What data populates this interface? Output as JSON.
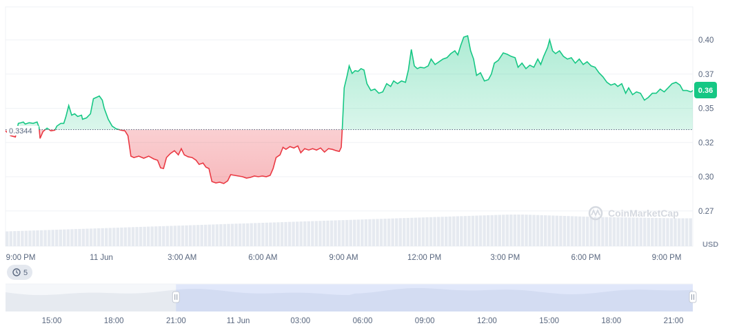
{
  "chart_data": {
    "type": "area",
    "currency": "USD",
    "reference_price": 0.3344,
    "reference_label": "0.3344",
    "current_price_label": "0.36",
    "ylim": [
      0.26,
      0.42
    ],
    "y_ticks": [
      {
        "value": 0.4,
        "label": "0.40"
      },
      {
        "value": 0.375,
        "label": "0.37"
      },
      {
        "value": 0.35,
        "label": "0.35"
      },
      {
        "value": 0.325,
        "label": "0.32"
      },
      {
        "value": 0.3,
        "label": "0.30"
      },
      {
        "value": 0.275,
        "label": "0.27"
      }
    ],
    "x_range_hours": [
      0,
      24.7
    ],
    "x_ticks": [
      {
        "hour": 0,
        "label": "9:00 PM"
      },
      {
        "hour": 3,
        "label": "11 Jun"
      },
      {
        "hour": 6,
        "label": "3:00 AM"
      },
      {
        "hour": 9,
        "label": "6:00 AM"
      },
      {
        "hour": 12,
        "label": "9:00 AM"
      },
      {
        "hour": 15,
        "label": "12:00 PM"
      },
      {
        "hour": 18,
        "label": "3:00 PM"
      },
      {
        "hour": 21,
        "label": "6:00 PM"
      },
      {
        "hour": 24,
        "label": "9:00 PM"
      }
    ],
    "price_series": [
      [
        0.0,
        0.3335
      ],
      [
        0.25,
        0.33
      ],
      [
        0.5,
        0.329
      ],
      [
        0.65,
        0.339
      ],
      [
        0.8,
        0.3395
      ],
      [
        0.9,
        0.34
      ],
      [
        1.0,
        0.3385
      ],
      [
        1.2,
        0.3395
      ],
      [
        1.4,
        0.339
      ],
      [
        1.6,
        0.34
      ],
      [
        1.7,
        0.336
      ],
      [
        1.75,
        0.328
      ],
      [
        1.9,
        0.333
      ],
      [
        2.1,
        0.3355
      ],
      [
        2.3,
        0.3335
      ],
      [
        2.5,
        0.334
      ],
      [
        2.6,
        0.337
      ],
      [
        2.8,
        0.339
      ],
      [
        2.95,
        0.339
      ],
      [
        3.05,
        0.3435
      ],
      [
        3.2,
        0.352
      ],
      [
        3.35,
        0.345
      ],
      [
        3.5,
        0.346
      ],
      [
        3.65,
        0.344
      ],
      [
        3.85,
        0.345
      ],
      [
        3.9,
        0.342
      ],
      [
        4.1,
        0.343
      ],
      [
        4.3,
        0.346
      ],
      [
        4.45,
        0.357
      ],
      [
        4.6,
        0.358
      ],
      [
        4.75,
        0.359
      ],
      [
        4.9,
        0.356
      ],
      [
        5.0,
        0.35
      ],
      [
        5.2,
        0.342
      ],
      [
        5.4,
        0.337
      ],
      [
        5.6,
        0.335
      ],
      [
        5.85,
        0.334
      ],
      [
        6.05,
        0.3335
      ],
      [
        6.2,
        0.33
      ],
      [
        6.35,
        0.315
      ],
      [
        6.5,
        0.314
      ],
      [
        6.75,
        0.315
      ],
      [
        7.0,
        0.3135
      ],
      [
        7.25,
        0.315
      ],
      [
        7.5,
        0.313
      ],
      [
        7.7,
        0.312
      ],
      [
        7.85,
        0.3065
      ],
      [
        8.0,
        0.306
      ],
      [
        8.15,
        0.314
      ],
      [
        8.35,
        0.317
      ],
      [
        8.55,
        0.319
      ],
      [
        8.75,
        0.316
      ],
      [
        8.9,
        0.3205
      ],
      [
        9.05,
        0.316
      ],
      [
        9.25,
        0.3145
      ],
      [
        9.45,
        0.314
      ],
      [
        9.65,
        0.312
      ],
      [
        9.8,
        0.309
      ],
      [
        10.0,
        0.31
      ],
      [
        10.15,
        0.307
      ],
      [
        10.3,
        0.306
      ],
      [
        10.45,
        0.2965
      ],
      [
        10.65,
        0.2955
      ],
      [
        10.85,
        0.296
      ],
      [
        11.05,
        0.295
      ],
      [
        11.25,
        0.297
      ],
      [
        11.4,
        0.3015
      ],
      [
        11.6,
        0.301
      ],
      [
        11.8,
        0.3005
      ],
      [
        12.0,
        0.3
      ],
      [
        12.2,
        0.299
      ],
      [
        12.4,
        0.2995
      ],
      [
        12.6,
        0.3005
      ],
      [
        12.8,
        0.3
      ],
      [
        13.0,
        0.3005
      ],
      [
        13.2,
        0.3
      ],
      [
        13.4,
        0.301
      ],
      [
        13.55,
        0.306
      ],
      [
        13.7,
        0.314
      ],
      [
        13.9,
        0.316
      ],
      [
        14.05,
        0.3215
      ],
      [
        14.2,
        0.32
      ],
      [
        14.4,
        0.322
      ],
      [
        14.6,
        0.321
      ],
      [
        14.8,
        0.3225
      ],
      [
        14.95,
        0.3175
      ],
      [
        15.15,
        0.3205
      ],
      [
        15.35,
        0.3195
      ],
      [
        15.55,
        0.3205
      ],
      [
        15.75,
        0.3195
      ],
      [
        15.95,
        0.321
      ],
      [
        16.15,
        0.318
      ],
      [
        16.35,
        0.3205
      ],
      [
        16.55,
        0.32
      ],
      [
        16.75,
        0.319
      ],
      [
        16.9,
        0.3185
      ],
      [
        17.0,
        0.3215
      ],
      [
        17.05,
        0.335
      ],
      [
        17.15,
        0.365
      ],
      [
        17.3,
        0.374
      ],
      [
        17.4,
        0.381
      ],
      [
        17.55,
        0.3755
      ],
      [
        17.7,
        0.3775
      ],
      [
        17.85,
        0.377
      ],
      [
        18.0,
        0.379
      ],
      [
        18.15,
        0.378
      ],
      [
        18.3,
        0.368
      ],
      [
        18.5,
        0.363
      ],
      [
        18.7,
        0.364
      ],
      [
        18.9,
        0.361
      ],
      [
        19.1,
        0.362
      ],
      [
        19.3,
        0.368
      ],
      [
        19.5,
        0.366
      ],
      [
        19.65,
        0.37
      ],
      [
        19.85,
        0.368
      ],
      [
        20.05,
        0.37
      ],
      [
        20.25,
        0.369
      ],
      [
        20.4,
        0.378
      ],
      [
        20.55,
        0.393
      ],
      [
        20.7,
        0.381
      ],
      [
        20.85,
        0.379
      ],
      [
        21.0,
        0.38
      ],
      [
        21.2,
        0.3795
      ],
      [
        21.4,
        0.381
      ],
      [
        21.55,
        0.386
      ],
      [
        21.75,
        0.382
      ],
      [
        21.95,
        0.384
      ],
      [
        22.15,
        0.386
      ],
      [
        22.35,
        0.387
      ],
      [
        22.55,
        0.39
      ],
      [
        22.75,
        0.392
      ],
      [
        22.9,
        0.389
      ],
      [
        23.05,
        0.396
      ],
      [
        23.2,
        0.402
      ],
      [
        23.4,
        0.403
      ],
      [
        23.55,
        0.392
      ],
      [
        23.7,
        0.386
      ],
      [
        23.85,
        0.374
      ],
      [
        24.05,
        0.376
      ],
      [
        24.25,
        0.37
      ],
      [
        24.45,
        0.371
      ],
      [
        24.6,
        0.375
      ],
      [
        24.75,
        0.383
      ],
      [
        24.95,
        0.385
      ],
      [
        25.2,
        0.3905
      ],
      [
        25.4,
        0.3895
      ],
      [
        25.6,
        0.388
      ],
      [
        25.8,
        0.387
      ],
      [
        25.95,
        0.38
      ],
      [
        26.15,
        0.383
      ],
      [
        26.35,
        0.379
      ],
      [
        26.55,
        0.3815
      ],
      [
        26.75,
        0.38
      ],
      [
        26.95,
        0.386
      ],
      [
        27.1,
        0.382
      ],
      [
        27.25,
        0.388
      ],
      [
        27.45,
        0.3945
      ],
      [
        27.55,
        0.4
      ],
      [
        27.7,
        0.392
      ],
      [
        27.85,
        0.39
      ],
      [
        28.05,
        0.392
      ],
      [
        28.25,
        0.388
      ],
      [
        28.45,
        0.386
      ],
      [
        28.65,
        0.387
      ],
      [
        28.85,
        0.383
      ],
      [
        29.05,
        0.386
      ],
      [
        29.25,
        0.382
      ],
      [
        29.45,
        0.384
      ],
      [
        29.65,
        0.381
      ],
      [
        29.85,
        0.38
      ],
      [
        30.05,
        0.376
      ],
      [
        30.25,
        0.373
      ],
      [
        30.45,
        0.369
      ],
      [
        30.65,
        0.367
      ],
      [
        30.85,
        0.368
      ],
      [
        31.0,
        0.366
      ],
      [
        31.2,
        0.368
      ],
      [
        31.4,
        0.361
      ],
      [
        31.55,
        0.365
      ],
      [
        31.75,
        0.36
      ],
      [
        31.95,
        0.362
      ],
      [
        32.15,
        0.361
      ],
      [
        32.35,
        0.356
      ],
      [
        32.55,
        0.358
      ],
      [
        32.75,
        0.361
      ],
      [
        32.95,
        0.361
      ],
      [
        33.15,
        0.364
      ],
      [
        33.35,
        0.362
      ],
      [
        33.55,
        0.365
      ],
      [
        33.75,
        0.368
      ],
      [
        33.95,
        0.369
      ],
      [
        34.15,
        0.367
      ],
      [
        34.3,
        0.363
      ],
      [
        34.5,
        0.363
      ],
      [
        34.7,
        0.362
      ],
      [
        34.8,
        0.363
      ]
    ],
    "volume_series": [
      0.28,
      0.3,
      0.32,
      0.34,
      0.36,
      0.38,
      0.4,
      0.42,
      0.44,
      0.46,
      0.48,
      0.5,
      0.52,
      0.54,
      0.56,
      0.58,
      0.6,
      0.62,
      0.64,
      0.66,
      0.68,
      0.7,
      0.72,
      0.74,
      0.76,
      0.78,
      0.8,
      0.82,
      0.84,
      0.86,
      0.88,
      0.9,
      0.92,
      0.94,
      0.96,
      0.98,
      1.0,
      1.0,
      0.98,
      0.96,
      0.94,
      0.92,
      0.9,
      0.89,
      0.88,
      0.87,
      0.86,
      0.85,
      0.84,
      0.84
    ],
    "navigator": {
      "ticks": [
        "15:00",
        "18:00",
        "21:00",
        "11 Jun",
        "03:00",
        "06:00",
        "09:00",
        "12:00",
        "15:00",
        "18:00",
        "21:00"
      ],
      "selected_fraction": [
        0.248,
        1.0
      ],
      "history_badge": "5"
    },
    "watermark": "CoinMarketCap"
  }
}
